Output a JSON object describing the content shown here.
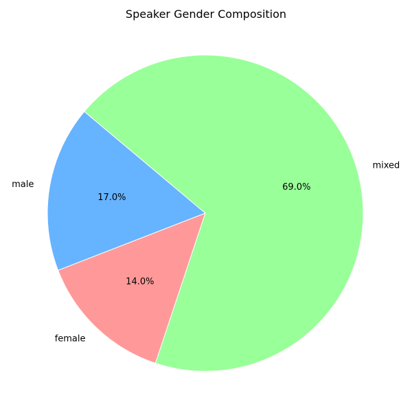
{
  "chart_data": {
    "type": "pie",
    "title": "Speaker Gender Composition",
    "slices": [
      {
        "label": "male",
        "value": 17.0,
        "pct_label": "17.0%",
        "color": "#66b3ff"
      },
      {
        "label": "female",
        "value": 14.0,
        "pct_label": "14.0%",
        "color": "#ff9999"
      },
      {
        "label": "mixed",
        "value": 69.0,
        "pct_label": "69.0%",
        "color": "#99ff99"
      }
    ],
    "start_angle_deg": 140,
    "direction": "counterclockwise",
    "legend": "none"
  }
}
